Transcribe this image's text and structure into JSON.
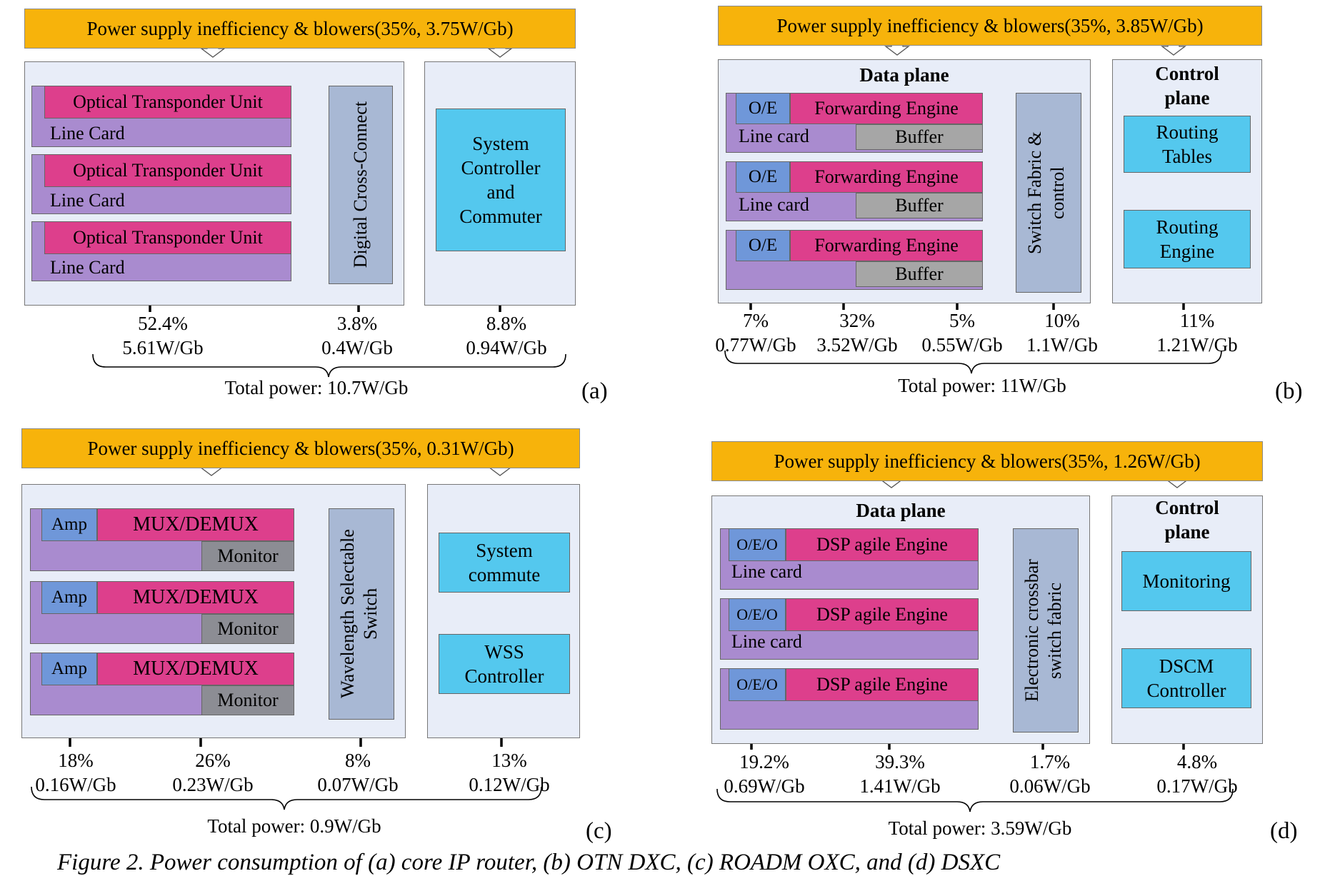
{
  "panels": {
    "a": {
      "letter": "(a)",
      "power_supply": "Power supply inefficiency & blowers(35%, 3.75W/Gb)",
      "units": [
        "Optical Transponder Unit",
        "Optical Transponder Unit",
        "Optical Transponder Unit"
      ],
      "line_card": "Line Card",
      "cross_connect": "Digital Cross-Connect",
      "controller": "System Controller and Commuter",
      "stats": [
        {
          "pct": "52.4%",
          "power": "5.61W/Gb"
        },
        {
          "pct": "3.8%",
          "power": "0.4W/Gb"
        },
        {
          "pct": "8.8%",
          "power": "0.94W/Gb"
        }
      ],
      "total": "Total power: 10.7W/Gb"
    },
    "b": {
      "letter": "(b)",
      "power_supply": "Power supply inefficiency & blowers(35%, 3.85W/Gb)",
      "data_plane": "Data plane",
      "control_plane": "Control plane",
      "oe": "O/E",
      "engine": "Forwarding Engine",
      "line_card": "Line card",
      "buffer": "Buffer",
      "fabric": "Switch Fabric & control",
      "routing_tables": "Routing Tables",
      "routing_engine": "Routing Engine",
      "stats": [
        {
          "pct": "7%",
          "power": "0.77W/Gb"
        },
        {
          "pct": "32%",
          "power": "3.52W/Gb"
        },
        {
          "pct": "5%",
          "power": "0.55W/Gb"
        },
        {
          "pct": "10%",
          "power": "1.1W/Gb"
        },
        {
          "pct": "11%",
          "power": "1.21W/Gb"
        }
      ],
      "total": "Total power: 11W/Gb"
    },
    "c": {
      "letter": "(c)",
      "power_supply": "Power supply inefficiency & blowers(35%, 0.31W/Gb)",
      "amp": "Amp",
      "mux": "MUX/DEMUX",
      "monitor": "Monitor",
      "wss": "Wavelength Selectable Switch",
      "system_commute": "System commute",
      "wss_controller": "WSS Controller",
      "stats": [
        {
          "pct": "18%",
          "power": "0.16W/Gb"
        },
        {
          "pct": "26%",
          "power": "0.23W/Gb"
        },
        {
          "pct": "8%",
          "power": "0.07W/Gb"
        },
        {
          "pct": "13%",
          "power": "0.12W/Gb"
        }
      ],
      "total": "Total power: 0.9W/Gb"
    },
    "d": {
      "letter": "(d)",
      "power_supply": "Power supply inefficiency & blowers(35%, 1.26W/Gb)",
      "data_plane": "Data plane",
      "control_plane": "Control plane",
      "oeo": "O/E/O",
      "engine": "DSP agile Engine",
      "line_card": "Line card",
      "crossbar": "Electronic crossbar switch fabric",
      "monitoring": "Monitoring",
      "dscm": "DSCM Controller",
      "stats": [
        {
          "pct": "19.2%",
          "power": "0.69W/Gb"
        },
        {
          "pct": "39.3%",
          "power": "1.41W/Gb"
        },
        {
          "pct": "1.7%",
          "power": "0.06W/Gb"
        },
        {
          "pct": "4.8%",
          "power": "0.17W/Gb"
        }
      ],
      "total": "Total power: 3.59W/Gb"
    }
  },
  "caption": "Figure 2. Power consumption of (a) core IP router, (b) OTN DXC, (c) ROADM OXC, and (d) DSXC"
}
